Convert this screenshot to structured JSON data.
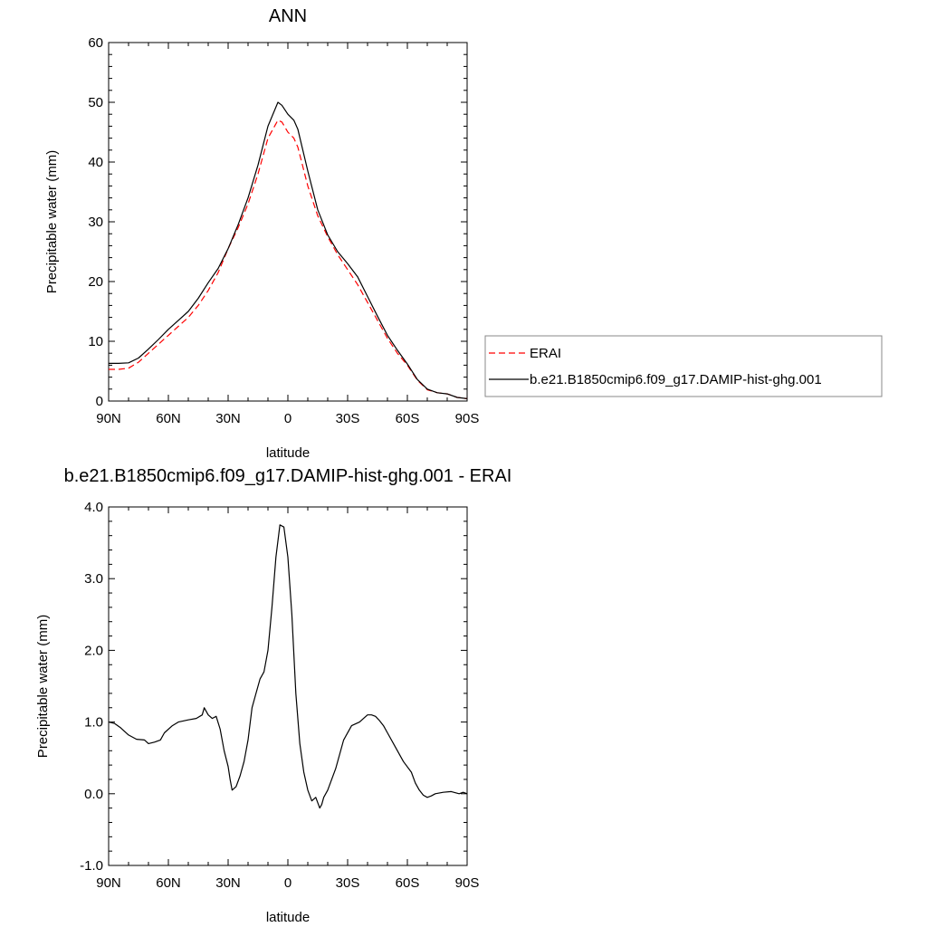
{
  "chart_data": [
    {
      "type": "line",
      "title": "ANN",
      "xlabel": "latitude",
      "ylabel": "Precipitable water (mm)",
      "xlim": [
        90,
        -90
      ],
      "ylim": [
        0,
        60
      ],
      "x_ticks": [
        90,
        60,
        30,
        0,
        -30,
        -60,
        -90
      ],
      "x_tick_labels": [
        "90N",
        "60N",
        "30N",
        "0",
        "30S",
        "60S",
        "90S"
      ],
      "y_ticks": [
        0,
        10,
        20,
        30,
        40,
        50,
        60
      ],
      "y_tick_labels": [
        "0",
        "10",
        "20",
        "30",
        "40",
        "50",
        "60"
      ],
      "grid": false,
      "legend_position": "right",
      "series": [
        {
          "name": "ERAI",
          "color": "#ff0000",
          "dash": "dashed",
          "x": [
            90,
            85,
            80,
            75,
            70,
            65,
            60,
            55,
            50,
            45,
            40,
            35,
            30,
            25,
            20,
            15,
            10,
            5,
            3,
            0,
            -3,
            -5,
            -10,
            -15,
            -20,
            -25,
            -30,
            -35,
            -40,
            -45,
            -50,
            -55,
            -60,
            -65,
            -70,
            -75,
            -80,
            -85,
            -90
          ],
          "y": [
            5.3,
            5.3,
            5.5,
            6.5,
            8.0,
            9.5,
            11.0,
            12.5,
            14.0,
            16.0,
            18.5,
            21.5,
            25.5,
            29.0,
            33.0,
            38.0,
            44.0,
            47.0,
            46.7,
            45.0,
            44.0,
            42.5,
            36.0,
            31.0,
            27.5,
            24.5,
            22.0,
            19.5,
            16.5,
            13.5,
            10.5,
            8.0,
            6.0,
            3.5,
            1.9,
            1.4,
            1.2,
            0.6,
            0.4
          ]
        },
        {
          "name": "b.e21.B1850cmip6.f09_g17.DAMIP-hist-ghg.001",
          "color": "#000000",
          "dash": "solid",
          "x": [
            90,
            85,
            80,
            75,
            70,
            65,
            60,
            55,
            50,
            45,
            40,
            35,
            30,
            25,
            20,
            15,
            10,
            5,
            3,
            0,
            -3,
            -5,
            -10,
            -15,
            -20,
            -25,
            -30,
            -35,
            -40,
            -45,
            -50,
            -55,
            -60,
            -65,
            -70,
            -75,
            -80,
            -85,
            -90
          ],
          "y": [
            6.3,
            6.3,
            6.4,
            7.2,
            8.7,
            10.3,
            12.0,
            13.5,
            15.0,
            17.2,
            19.8,
            22.2,
            25.5,
            29.5,
            34.0,
            39.5,
            46.0,
            50.0,
            49.5,
            48.0,
            47.0,
            45.5,
            38.5,
            32.0,
            27.8,
            25.0,
            23.0,
            20.8,
            17.5,
            14.2,
            11.0,
            8.5,
            6.2,
            3.6,
            2.0,
            1.4,
            1.2,
            0.6,
            0.4
          ]
        }
      ]
    },
    {
      "type": "line",
      "title": "b.e21.B1850cmip6.f09_g17.DAMIP-hist-ghg.001 - ERAI",
      "xlabel": "latitude",
      "ylabel": "Precipitable water (mm)",
      "xlim": [
        90,
        -90
      ],
      "ylim": [
        -1.0,
        4.0
      ],
      "x_ticks": [
        90,
        60,
        30,
        0,
        -30,
        -60,
        -90
      ],
      "x_tick_labels": [
        "90N",
        "60N",
        "30N",
        "0",
        "30S",
        "60S",
        "90S"
      ],
      "y_ticks": [
        -1.0,
        0.0,
        1.0,
        2.0,
        3.0,
        4.0
      ],
      "y_tick_labels": [
        "-1.0",
        "0.0",
        "1.0",
        "2.0",
        "3.0",
        "4.0"
      ],
      "grid": false,
      "series": [
        {
          "color": "#000000",
          "dash": "solid",
          "x": [
            90,
            87,
            84,
            80,
            76,
            72,
            70,
            67,
            64,
            62,
            58,
            55,
            50,
            46,
            43,
            42,
            40,
            38,
            36,
            34,
            32,
            30,
            29,
            28,
            26,
            24,
            22,
            20,
            18,
            16,
            14,
            12,
            10,
            8,
            6,
            4,
            2,
            0,
            -2,
            -4,
            -6,
            -8,
            -10,
            -12,
            -14,
            -16,
            -17,
            -18,
            -20,
            -24,
            -28,
            -32,
            -36,
            -38,
            -40,
            -42,
            -44,
            -46,
            -48,
            -50,
            -54,
            -58,
            -62,
            -64,
            -66,
            -68,
            -70,
            -72,
            -74,
            -78,
            -82,
            -86,
            -88,
            -90
          ],
          "y": [
            1.0,
            0.98,
            0.92,
            0.82,
            0.76,
            0.75,
            0.7,
            0.72,
            0.75,
            0.85,
            0.95,
            1.0,
            1.03,
            1.05,
            1.1,
            1.2,
            1.1,
            1.05,
            1.08,
            0.9,
            0.6,
            0.38,
            0.2,
            0.05,
            0.1,
            0.25,
            0.45,
            0.75,
            1.2,
            1.4,
            1.6,
            1.7,
            2.0,
            2.6,
            3.3,
            3.75,
            3.72,
            3.3,
            2.5,
            1.4,
            0.7,
            0.3,
            0.05,
            -0.1,
            -0.05,
            -0.2,
            -0.15,
            -0.05,
            0.05,
            0.35,
            0.75,
            0.95,
            1.0,
            1.05,
            1.1,
            1.1,
            1.08,
            1.02,
            0.95,
            0.85,
            0.65,
            0.45,
            0.3,
            0.15,
            0.05,
            -0.02,
            -0.05,
            -0.03,
            0.0,
            0.02,
            0.03,
            0.0,
            0.02,
            0.0
          ]
        }
      ]
    }
  ]
}
